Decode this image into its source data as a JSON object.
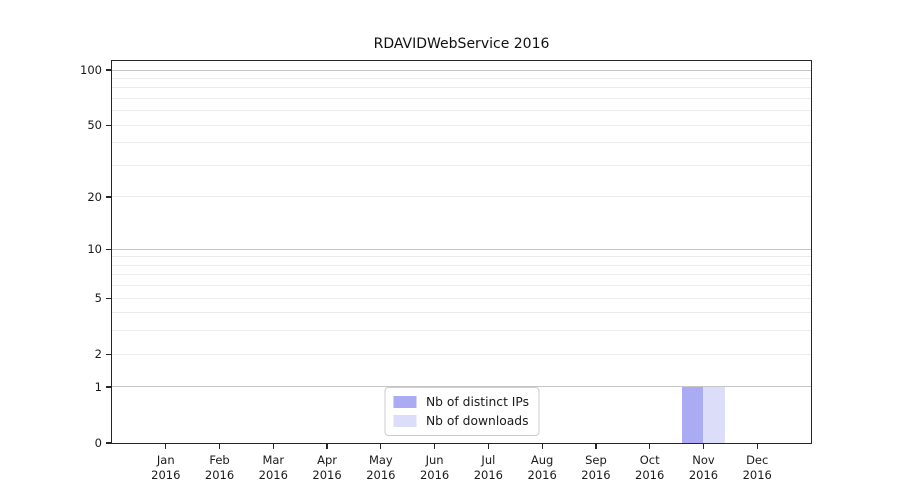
{
  "title": "RDAVIDWebService 2016",
  "chart_data": {
    "type": "bar",
    "title": "RDAVIDWebService 2016",
    "x_axis": {
      "months": [
        "Jan",
        "Feb",
        "Mar",
        "Apr",
        "May",
        "Jun",
        "Jul",
        "Aug",
        "Sep",
        "Oct",
        "Nov",
        "Dec"
      ],
      "year": "2016"
    },
    "series": [
      {
        "name": "Nb of distinct IPs",
        "color": "#aaabf3",
        "values": [
          0,
          0,
          0,
          0,
          0,
          0,
          0,
          0,
          0,
          0,
          1,
          0
        ]
      },
      {
        "name": "Nb of downloads",
        "color": "#dcddf8",
        "values": [
          0,
          0,
          0,
          0,
          0,
          0,
          0,
          0,
          0,
          0,
          1,
          0
        ]
      }
    ],
    "y_axis": {
      "scale": "log1p",
      "lim": [
        0,
        112
      ],
      "tick_labels": [
        0,
        1,
        2,
        5,
        10,
        20,
        50,
        100
      ],
      "major_gridlines": [
        1,
        10,
        100
      ],
      "minor_gridlines": [
        2,
        3,
        4,
        5,
        6,
        7,
        8,
        9,
        20,
        30,
        40,
        50,
        60,
        70,
        80,
        90
      ]
    },
    "legend": {
      "position": "lower center",
      "entries": [
        "Nb of distinct IPs",
        "Nb of downloads"
      ]
    },
    "grid": true
  },
  "colors": {
    "background": "#ffffff",
    "bar_distinct_ips": "#aaabf3",
    "bar_downloads": "#dcddf8",
    "grid_major": "#c6c6c6",
    "grid_minor": "#ebebeb",
    "spine": "#262626",
    "text": "#1a1a1a",
    "legend_border": "#cccccc"
  }
}
